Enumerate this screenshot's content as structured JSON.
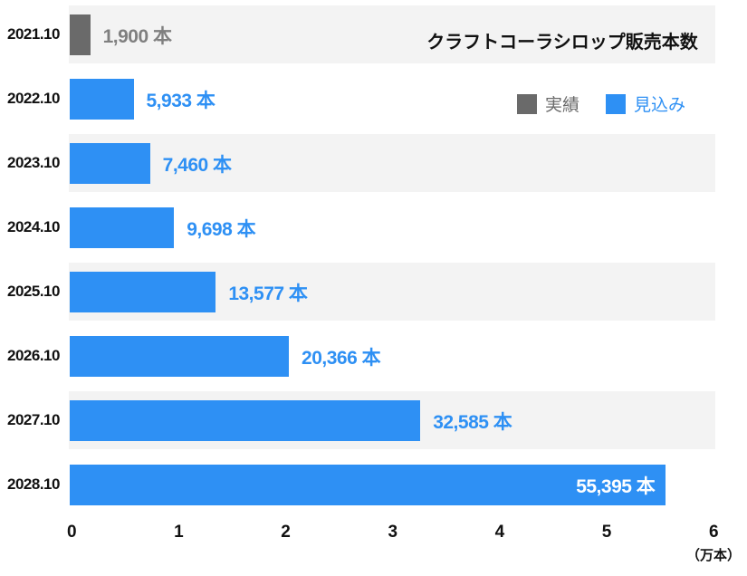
{
  "title": "クラフトコーラシロップ販売本数",
  "colors": {
    "actual": "#6a6a6a",
    "forecast": "#2e90f4",
    "actual_text": "#6a6a6a",
    "actual_value_text": "#7f7f7f",
    "inside_value_text": "#ffffff",
    "row_band": "#f3f3f3",
    "axis_text": "#111111"
  },
  "chart_data": {
    "type": "bar",
    "orientation": "horizontal",
    "title": "クラフトコーラシロップ販売本数",
    "xlabel": "(万本)",
    "ylabel": "",
    "axis": {
      "min": 0,
      "max": 60000,
      "ticks": [
        "0",
        "1",
        "2",
        "3",
        "4",
        "5",
        "6"
      ],
      "tick_values": [
        0,
        10000,
        20000,
        30000,
        40000,
        50000,
        60000
      ],
      "unit_label": "（万本）"
    },
    "legend": [
      {
        "label": "実績",
        "series": "actual"
      },
      {
        "label": "見込み",
        "series": "forecast"
      }
    ],
    "categories": [
      "2021.10",
      "2022.10",
      "2023.10",
      "2024.10",
      "2025.10",
      "2026.10",
      "2027.10",
      "2028.10"
    ],
    "rows": [
      {
        "category": "2021.10",
        "value": 1900,
        "value_label": "1,900 本",
        "series": "actual",
        "label_position": "outside"
      },
      {
        "category": "2022.10",
        "value": 5933,
        "value_label": "5,933 本",
        "series": "forecast",
        "label_position": "outside"
      },
      {
        "category": "2023.10",
        "value": 7460,
        "value_label": "7,460 本",
        "series": "forecast",
        "label_position": "outside"
      },
      {
        "category": "2024.10",
        "value": 9698,
        "value_label": "9,698 本",
        "series": "forecast",
        "label_position": "outside"
      },
      {
        "category": "2025.10",
        "value": 13577,
        "value_label": "13,577 本",
        "series": "forecast",
        "label_position": "outside"
      },
      {
        "category": "2026.10",
        "value": 20366,
        "value_label": "20,366 本",
        "series": "forecast",
        "label_position": "outside"
      },
      {
        "category": "2027.10",
        "value": 32585,
        "value_label": "32,585 本",
        "series": "forecast",
        "label_position": "outside"
      },
      {
        "category": "2028.10",
        "value": 55395,
        "value_label": "55,395 本",
        "series": "forecast",
        "label_position": "inside"
      }
    ]
  }
}
